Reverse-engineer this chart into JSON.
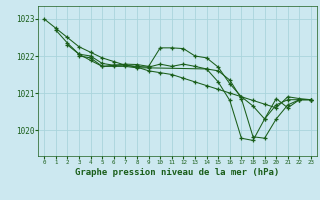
{
  "background_color": "#cce8f0",
  "grid_color": "#aad4dc",
  "line_color": "#1a5e1a",
  "title": "Graphe pression niveau de la mer (hPa)",
  "xlim": [
    -0.5,
    23.5
  ],
  "ylim": [
    1019.3,
    1023.35
  ],
  "yticks": [
    1020,
    1021,
    1022,
    1023
  ],
  "xticks": [
    0,
    1,
    2,
    3,
    4,
    5,
    6,
    7,
    8,
    9,
    10,
    11,
    12,
    13,
    14,
    15,
    16,
    17,
    18,
    19,
    20,
    21,
    22,
    23
  ],
  "series": [
    {
      "x": [
        0,
        1,
        2,
        3,
        4,
        5,
        6,
        7,
        8,
        9,
        10,
        11,
        12,
        13,
        14,
        15,
        16,
        17,
        18,
        19,
        20,
        21,
        22,
        23
      ],
      "y": [
        1023.0,
        1022.75,
        1022.5,
        1022.25,
        1022.1,
        1021.95,
        1021.85,
        1021.75,
        1021.7,
        1021.6,
        1021.55,
        1021.5,
        1021.4,
        1021.3,
        1021.2,
        1021.1,
        1021.0,
        1020.9,
        1020.8,
        1020.7,
        1020.6,
        1020.9,
        1020.85,
        1020.82
      ]
    },
    {
      "x": [
        1,
        2,
        3,
        4,
        5,
        6,
        7,
        8,
        9,
        10,
        11,
        12,
        13,
        14,
        15,
        16,
        17,
        18,
        19,
        20,
        21,
        22,
        23
      ],
      "y": [
        1022.7,
        1022.35,
        1022.05,
        1022.0,
        1021.8,
        1021.75,
        1021.78,
        1021.77,
        1021.72,
        1022.22,
        1022.22,
        1022.2,
        1022.0,
        1021.95,
        1021.7,
        1021.25,
        1020.9,
        1020.65,
        1020.3,
        1020.85,
        1020.6,
        1020.82,
        1020.82
      ]
    },
    {
      "x": [
        2,
        3,
        4,
        5,
        6,
        7,
        8,
        9,
        10,
        11,
        12,
        13,
        14,
        15,
        16,
        17,
        18,
        19,
        20,
        21,
        22,
        23
      ],
      "y": [
        1022.3,
        1022.05,
        1021.88,
        1021.72,
        1021.75,
        1021.75,
        1021.72,
        1021.7,
        1021.78,
        1021.72,
        1021.78,
        1021.72,
        1021.65,
        1021.6,
        1021.35,
        1020.85,
        1019.82,
        1019.78,
        1020.3,
        1020.68,
        1020.82,
        1020.82
      ]
    },
    {
      "x": [
        3,
        4,
        5,
        6,
        7,
        8,
        9,
        14,
        15,
        16,
        17,
        18,
        19,
        20,
        21,
        22,
        23
      ],
      "y": [
        1022.0,
        1021.95,
        1021.72,
        1021.72,
        1021.72,
        1021.68,
        1021.68,
        1021.65,
        1021.3,
        1020.8,
        1019.78,
        1019.72,
        1020.3,
        1020.68,
        1020.82,
        1020.82,
        1020.82
      ]
    }
  ]
}
